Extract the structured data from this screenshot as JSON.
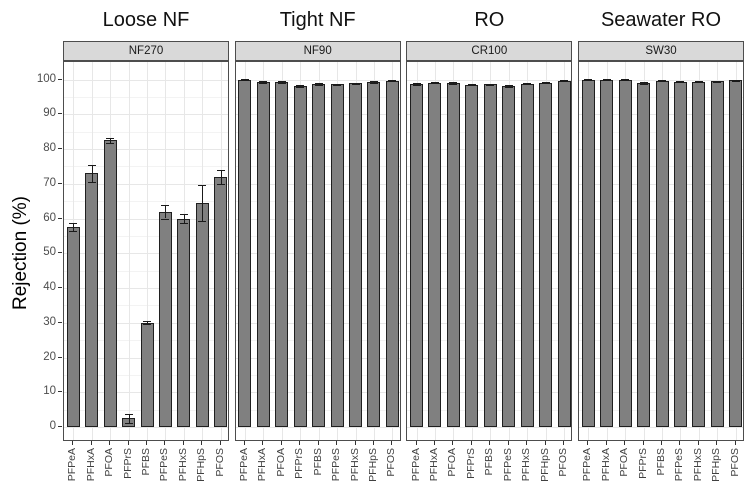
{
  "chart_data": {
    "type": "bar",
    "title": "",
    "ylabel": "Rejection (%)",
    "xlabel": "",
    "ylim": [
      0,
      100
    ],
    "yticks": [
      0,
      10,
      20,
      30,
      40,
      50,
      60,
      70,
      80,
      90,
      100
    ],
    "grid": "major and minor horizontal, light gray; vertical at each category",
    "legend": "none",
    "categories": [
      "PFPeA",
      "PFHxA",
      "PFOA",
      "PFPrS",
      "PFBS",
      "PFPeS",
      "PFHxS",
      "PFHpS",
      "PFOS"
    ],
    "facets": [
      {
        "title": "Loose NF",
        "strip": "NF270",
        "values": [
          57.5,
          73,
          82.5,
          2.5,
          30,
          62,
          60,
          64.5,
          72
        ],
        "errors": [
          1.2,
          2.5,
          0.7,
          1.3,
          0.5,
          2.0,
          1.4,
          5.2,
          2.0
        ]
      },
      {
        "title": "Tight NF",
        "strip": "NF90",
        "values": [
          100,
          99.4,
          99.3,
          98.2,
          98.7,
          98.6,
          98.9,
          99.4,
          99.6
        ],
        "errors": [
          0.1,
          0.3,
          0.3,
          0.3,
          0.15,
          0.15,
          0.15,
          0.3,
          0.15
        ]
      },
      {
        "title": "RO",
        "strip": "CR100",
        "values": [
          98.8,
          99.0,
          99.0,
          98.5,
          98.6,
          98.1,
          98.8,
          99.1,
          99.7
        ],
        "errors": [
          0.3,
          0.15,
          0.3,
          0.15,
          0.15,
          0.3,
          0.15,
          0.15,
          0.15
        ]
      },
      {
        "title": "Seawater RO",
        "strip": "SW30",
        "values": [
          100,
          100,
          100,
          99.0,
          99.6,
          99.3,
          99.3,
          99.5,
          99.8
        ],
        "errors": [
          0.1,
          0.1,
          0.1,
          0.2,
          0.15,
          0.15,
          0.15,
          0.15,
          0.1
        ]
      }
    ],
    "style": {
      "bar_fill": "#808080",
      "bar_stroke": "#1f1f1f",
      "error_color": "#1a1a1a",
      "strip_bg": "#d9d9d9",
      "panel_border": "#4d4d4d",
      "grid_major": "#e7e7e7",
      "grid_minor": "#f3f3f3",
      "tick_label_color": "#4d4d4d",
      "background": "#ffffff"
    }
  }
}
